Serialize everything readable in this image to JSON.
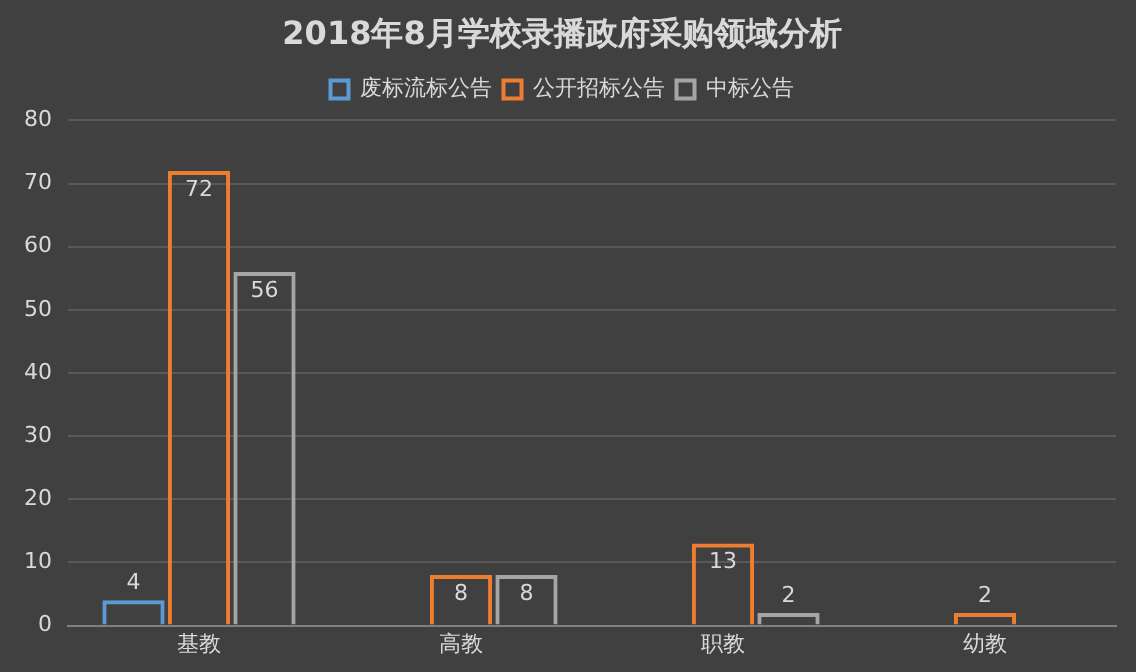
{
  "chart_data": {
    "type": "bar",
    "title": "2018年8月学校录播政府采购领域分析",
    "categories": [
      "基教",
      "高教",
      "职教",
      "幼教"
    ],
    "series": [
      {
        "name": "废标流标公告",
        "color": "#5b9bd5",
        "values": [
          4,
          null,
          null,
          null
        ]
      },
      {
        "name": "公开招标公告",
        "color": "#ed7d31",
        "values": [
          72,
          8,
          13,
          2
        ]
      },
      {
        "name": "中标公告",
        "color": "#a5a5a5",
        "values": [
          56,
          8,
          2,
          null
        ]
      }
    ],
    "ylim": [
      0,
      80
    ],
    "yticks": [
      0,
      10,
      20,
      30,
      40,
      50,
      60,
      70,
      80
    ],
    "grid": "y",
    "legend": "top",
    "data_labels": true
  }
}
